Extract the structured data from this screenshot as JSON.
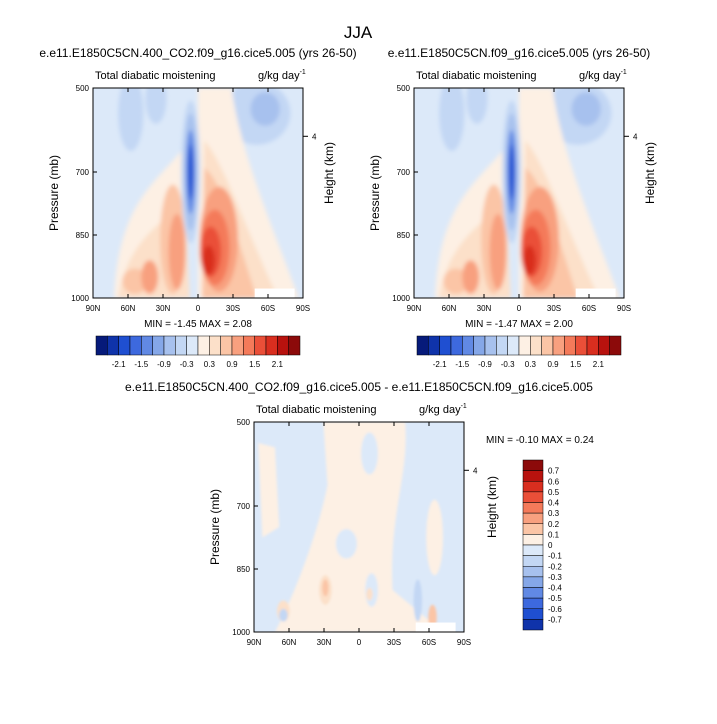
{
  "main_title": "JJA",
  "chart_data": [
    {
      "type": "heatmap",
      "title": "e.e11.E1850C5CN.400_CO2.f09_g16.cice5.005 (yrs 26-50)",
      "left_label": "Total diabatic moistening",
      "units": "g/kg day",
      "units_exp": "-1",
      "ylabel": "Pressure (mb)",
      "right_label": "Height (km)",
      "xticks": [
        "90N",
        "60N",
        "30N",
        "0",
        "30S",
        "60S",
        "90S"
      ],
      "yticks": [
        "500",
        "700",
        "850",
        "1000"
      ],
      "right_ticks": [
        "4"
      ],
      "min_max": "MIN = -1.45   MAX =  2.08",
      "min": -1.45,
      "max": 2.08,
      "levels": [
        "-2.1",
        "-1.5",
        "-0.9",
        "-0.3",
        "0.3",
        "0.9",
        "1.5",
        "2.1"
      ]
    },
    {
      "type": "heatmap",
      "title": "e.e11.E1850C5CN.f09_g16.cice5.005 (yrs 26-50)",
      "left_label": "Total diabatic moistening",
      "units": "g/kg day",
      "units_exp": "-1",
      "ylabel": "Pressure (mb)",
      "right_label": "Height (km)",
      "xticks": [
        "90N",
        "60N",
        "30N",
        "0",
        "30S",
        "60S",
        "90S"
      ],
      "yticks": [
        "500",
        "700",
        "850",
        "1000"
      ],
      "right_ticks": [
        "4"
      ],
      "min_max": "MIN = -1.47   MAX =  2.00",
      "min": -1.47,
      "max": 2.0,
      "levels": [
        "-2.1",
        "-1.5",
        "-0.9",
        "-0.3",
        "0.3",
        "0.9",
        "1.5",
        "2.1"
      ]
    },
    {
      "type": "heatmap",
      "title": "e.e11.E1850C5CN.400_CO2.f09_g16.cice5.005 - e.e11.E1850C5CN.f09_g16.cice5.005",
      "left_label": "Total diabatic moistening",
      "units": "g/kg day",
      "units_exp": "-1",
      "ylabel": "Pressure (mb)",
      "right_label": "Height (km)",
      "xticks": [
        "90N",
        "60N",
        "30N",
        "0",
        "30S",
        "60S",
        "90S"
      ],
      "yticks": [
        "500",
        "700",
        "850",
        "1000"
      ],
      "right_ticks": [
        "4"
      ],
      "min_max": "MIN = -0.10   MAX =  0.24",
      "min": -0.1,
      "max": 0.24,
      "levels": [
        "0.7",
        "0.6",
        "0.5",
        "0.4",
        "0.3",
        "0.2",
        "0.1",
        "0",
        "-0.1",
        "-0.2",
        "-0.3",
        "-0.4",
        "-0.5",
        "-0.6",
        "-0.7"
      ]
    }
  ],
  "colors": {
    "warm": [
      "#fdf0e4",
      "#fce0c9",
      "#fbc5a6",
      "#f8a07f",
      "#f47a5a",
      "#ea4f38",
      "#d92e1f",
      "#b8120e",
      "#8c0a0a"
    ],
    "cool": [
      "#dce9f9",
      "#c3d7f4",
      "#a7c1ee",
      "#85a7e8",
      "#6189e4",
      "#3d69de",
      "#1f4fd1",
      "#0f33aa",
      "#061a7a"
    ],
    "diff_bar": [
      "#8c0a0a",
      "#b8120e",
      "#d92e1f",
      "#ea4f38",
      "#f47a5a",
      "#f8a07f",
      "#fbc5a6",
      "#fdf0e4",
      "#dce9f9",
      "#c3d7f4",
      "#a7c1ee",
      "#85a7e8",
      "#6189e4",
      "#3d69de",
      "#1f4fd1",
      "#0f33aa"
    ],
    "top_bar": [
      "#061a7a",
      "#0f33aa",
      "#1f4fd1",
      "#3d69de",
      "#6189e4",
      "#85a7e8",
      "#a7c1ee",
      "#c3d7f4",
      "#dce9f9",
      "#fdf0e4",
      "#fce0c9",
      "#fbc5a6",
      "#f8a07f",
      "#f47a5a",
      "#ea4f38",
      "#d92e1f",
      "#b8120e",
      "#8c0a0a"
    ]
  }
}
